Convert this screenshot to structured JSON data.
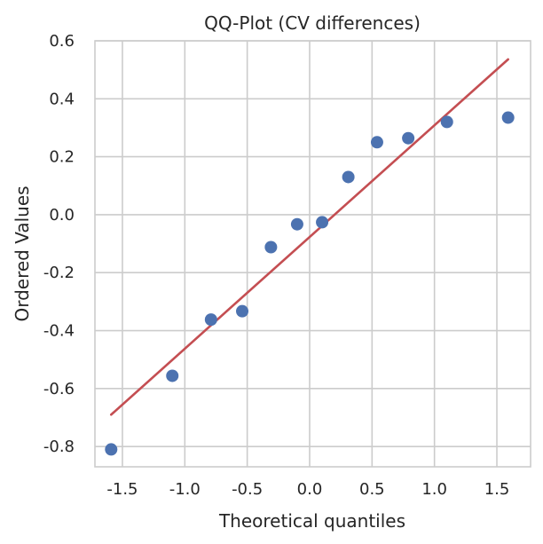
{
  "chart_data": {
    "type": "scatter",
    "title": "QQ-Plot (CV differences)",
    "xlabel": "Theoretical quantiles",
    "ylabel": "Ordered Values",
    "xlim": [
      -1.72,
      1.77
    ],
    "ylim": [
      -0.87,
      0.6
    ],
    "xticks": [
      -1.5,
      -1.0,
      -0.5,
      0.0,
      0.5,
      1.0,
      1.5
    ],
    "xtick_labels": [
      "-1.5",
      "-1.0",
      "-0.5",
      "0.0",
      "0.5",
      "1.0",
      "1.5"
    ],
    "yticks": [
      -0.8,
      -0.6,
      -0.4,
      -0.2,
      0.0,
      0.2,
      0.4,
      0.6
    ],
    "ytick_labels": [
      "-0.8",
      "-0.6",
      "-0.4",
      "-0.2",
      "0.0",
      "0.2",
      "0.4",
      "0.6"
    ],
    "grid": true,
    "series": [
      {
        "marker_color": "#4c72b0",
        "x": [
          -1.59,
          -1.1,
          -0.79,
          -0.54,
          -0.31,
          -0.1,
          0.1,
          0.31,
          0.54,
          0.79,
          1.1,
          1.59
        ],
        "y": [
          -0.81,
          -0.556,
          -0.362,
          -0.333,
          -0.112,
          -0.033,
          -0.026,
          0.13,
          0.25,
          0.264,
          0.32,
          0.335
        ]
      }
    ],
    "fit_line": {
      "color": "#c44e52",
      "x": [
        -1.59,
        1.59
      ],
      "y": [
        -0.69,
        0.536
      ]
    }
  }
}
